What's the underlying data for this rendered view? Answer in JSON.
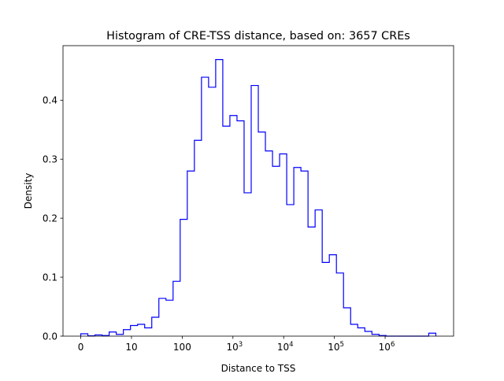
{
  "chart_data": {
    "type": "histogram",
    "title": "Histogram of CRE-TSS distance, based on: 3657 CREs",
    "xlabel": "Distance to TSS",
    "ylabel": "Density",
    "x_scale": "log10(distance) decades, 0 at first tick",
    "xlim": [
      -0.35,
      7.35
    ],
    "ylim": [
      0,
      0.4925
    ],
    "x_ticks": [
      {
        "value": 0,
        "base": "0",
        "exp": ""
      },
      {
        "value": 1,
        "base": "10",
        "exp": ""
      },
      {
        "value": 2,
        "base": "100",
        "exp": ""
      },
      {
        "value": 3,
        "base": "10",
        "exp": "3"
      },
      {
        "value": 4,
        "base": "10",
        "exp": "4"
      },
      {
        "value": 5,
        "base": "10",
        "exp": "5"
      },
      {
        "value": 6,
        "base": "10",
        "exp": "6"
      }
    ],
    "y_ticks": [
      {
        "value": 0.0,
        "label": "0.0"
      },
      {
        "value": 0.1,
        "label": "0.1"
      },
      {
        "value": 0.2,
        "label": "0.2"
      },
      {
        "value": 0.3,
        "label": "0.3"
      },
      {
        "value": 0.4,
        "label": "0.4"
      }
    ],
    "bin_start": 0,
    "bin_width": 0.14,
    "values": [
      0.004,
      0.0005,
      0.002,
      0.001,
      0.007,
      0.003,
      0.011,
      0.018,
      0.02,
      0.014,
      0.032,
      0.064,
      0.061,
      0.093,
      0.198,
      0.28,
      0.332,
      0.439,
      0.422,
      0.469,
      0.356,
      0.374,
      0.365,
      0.243,
      0.425,
      0.346,
      0.314,
      0.288,
      0.309,
      0.223,
      0.286,
      0.28,
      0.185,
      0.214,
      0.125,
      0.138,
      0.107,
      0.048,
      0.02,
      0.014,
      0.008,
      0.003,
      0.001,
      0,
      0,
      0,
      0,
      0,
      0,
      0.005
    ],
    "histtype": "step",
    "color": "#0000ff",
    "grid": false
  }
}
